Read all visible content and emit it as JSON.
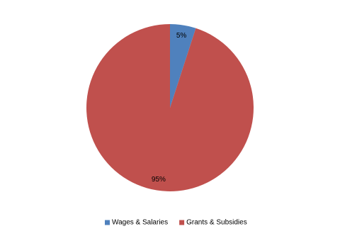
{
  "chart_data": {
    "type": "pie",
    "categories": [
      "Wages & Salaries",
      "Grants & Subsidies"
    ],
    "values": [
      5,
      95
    ],
    "value_labels": [
      "5%",
      "95%"
    ],
    "colors": [
      "#4f81bd",
      "#c0504d"
    ],
    "legend": "bottom"
  }
}
